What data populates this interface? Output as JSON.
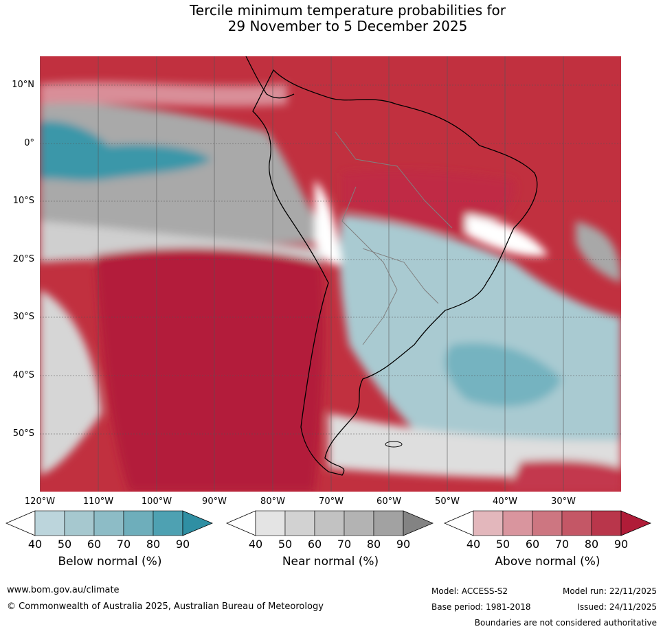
{
  "title": {
    "line1": "Tercile minimum temperature probabilities for",
    "line2": "29 November to 5 December 2025"
  },
  "map": {
    "lat_labels": [
      "10°N",
      "0°",
      "10°S",
      "20°S",
      "30°S",
      "40°S",
      "50°S"
    ],
    "lon_labels": [
      "120°W",
      "110°W",
      "100°W",
      "90°W",
      "80°W",
      "70°W",
      "60°W",
      "50°W",
      "40°W",
      "30°W"
    ],
    "colors": {
      "above": "#b81c38",
      "above_light": "#d6707e",
      "near": "#9a9a9a",
      "near_light": "#d3d3d3",
      "below": "#2f93a7",
      "below_light": "#b7d6dc",
      "land_outline": "#000000",
      "grid": "#444444"
    }
  },
  "colorbars": [
    {
      "label": "Below normal (%)",
      "ticks": [
        "40",
        "50",
        "60",
        "70",
        "80",
        "90"
      ],
      "colors": [
        "#ffffff",
        "#bcd5dc",
        "#a6c8cf",
        "#8dbcc6",
        "#6eaebb",
        "#4ea1b2",
        "#2f8fa3"
      ]
    },
    {
      "label": "Near normal (%)",
      "ticks": [
        "40",
        "50",
        "60",
        "70",
        "80",
        "90"
      ],
      "colors": [
        "#ffffff",
        "#e4e4e4",
        "#d2d2d2",
        "#c2c2c2",
        "#b3b3b3",
        "#a2a2a2",
        "#838383"
      ]
    },
    {
      "label": "Above normal (%)",
      "ticks": [
        "40",
        "50",
        "60",
        "70",
        "80",
        "90"
      ],
      "colors": [
        "#ffffff",
        "#e3b7bc",
        "#d9959e",
        "#cd7681",
        "#c45766",
        "#b9364b",
        "#b01c38"
      ]
    }
  ],
  "footer": {
    "url": "www.bom.gov.au/climate",
    "copyright": "© Commonwealth of Australia 2025, Australian Bureau of Meteorology",
    "model": "Model: ACCESS-S2",
    "base_period": "Base period: 1981-2018",
    "model_run": "Model run: 22/11/2025",
    "issued": "Issued: 24/11/2025",
    "disclaimer": "Boundaries are not considered authoritative"
  }
}
